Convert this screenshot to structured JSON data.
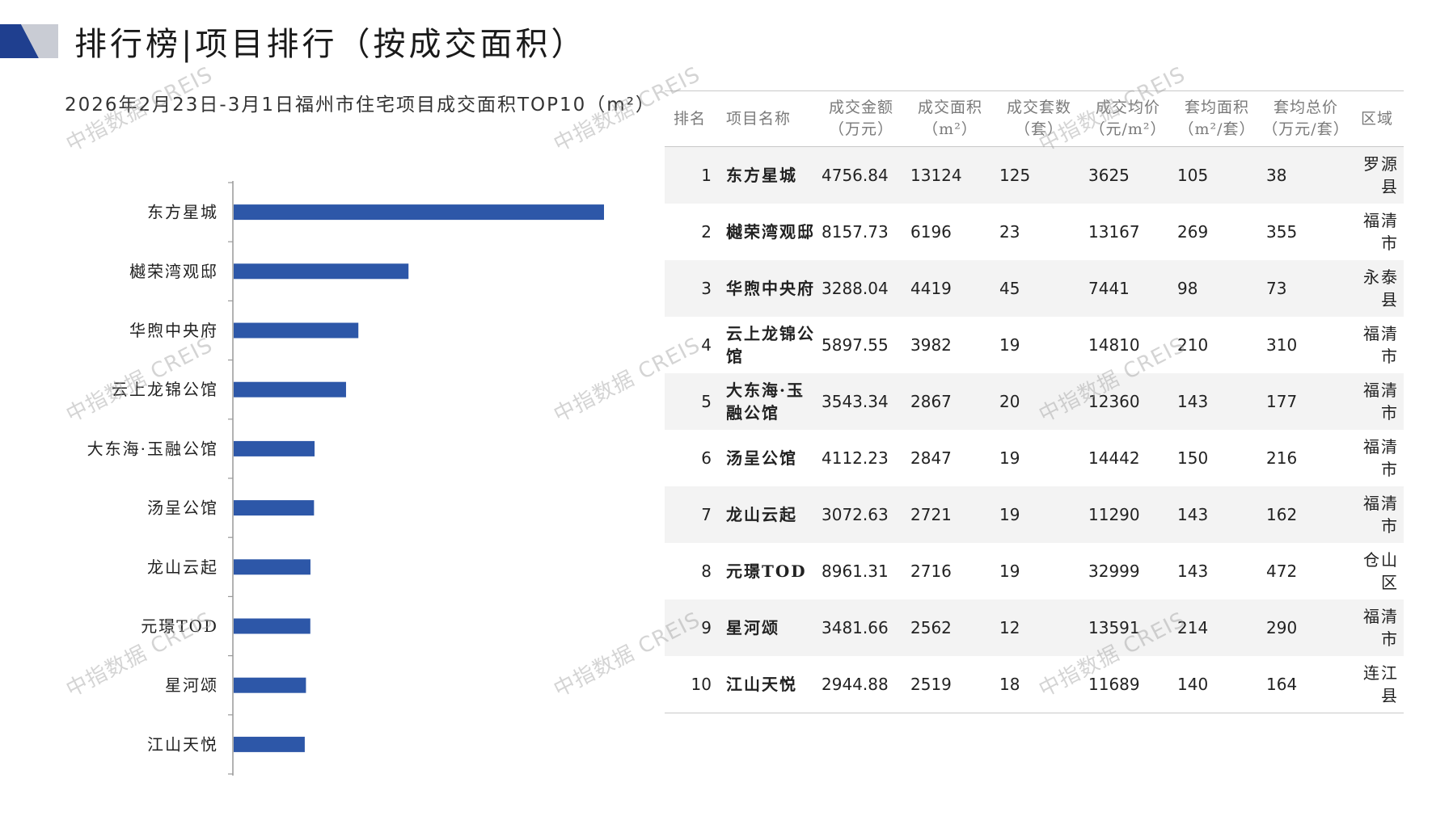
{
  "page_title": "排行榜|项目排行（按成交面积）",
  "watermark": "中指数据 CREIS",
  "colors": {
    "bar": "#2d57a8",
    "deco_dark": "#1f3f8f",
    "deco_light": "#c9ccd4"
  },
  "chart_data": {
    "type": "bar",
    "orientation": "horizontal",
    "title": "2026年2月23日-3月1日福州市住宅项目成交面积TOP10（m²）",
    "categories": [
      "东方星城",
      "樾荣湾观邸",
      "华煦中央府",
      "云上龙锦公馆",
      "大东海·玉融公馆",
      "汤呈公馆",
      "龙山云起",
      "元璟TOD",
      "星河颂",
      "江山天悦"
    ],
    "values": [
      13124,
      6196,
      4419,
      3982,
      2867,
      2847,
      2721,
      2716,
      2562,
      2519
    ],
    "xlim": [
      0,
      13124
    ],
    "grid": false,
    "legend": "none"
  },
  "table": {
    "headers": [
      "排名",
      "项目名称",
      "成交金额\n（万元）",
      "成交面积\n（m²）",
      "成交套数\n（套）",
      "成交均价\n（元/m²）",
      "套均面积\n（m²/套）",
      "套均总价\n（万元/套）",
      "区域"
    ],
    "rows": [
      [
        "1",
        "东方星城",
        "4756.84",
        "13124",
        "125",
        "3625",
        "105",
        "38",
        "罗源县"
      ],
      [
        "2",
        "樾荣湾观邸",
        "8157.73",
        "6196",
        "23",
        "13167",
        "269",
        "355",
        "福清市"
      ],
      [
        "3",
        "华煦中央府",
        "3288.04",
        "4419",
        "45",
        "7441",
        "98",
        "73",
        "永泰县"
      ],
      [
        "4",
        "云上龙锦公馆",
        "5897.55",
        "3982",
        "19",
        "14810",
        "210",
        "310",
        "福清市"
      ],
      [
        "5",
        "大东海·玉融公馆",
        "3543.34",
        "2867",
        "20",
        "12360",
        "143",
        "177",
        "福清市"
      ],
      [
        "6",
        "汤呈公馆",
        "4112.23",
        "2847",
        "19",
        "14442",
        "150",
        "216",
        "福清市"
      ],
      [
        "7",
        "龙山云起",
        "3072.63",
        "2721",
        "19",
        "11290",
        "143",
        "162",
        "福清市"
      ],
      [
        "8",
        "元璟TOD",
        "8961.31",
        "2716",
        "19",
        "32999",
        "143",
        "472",
        "仓山区"
      ],
      [
        "9",
        "星河颂",
        "3481.66",
        "2562",
        "12",
        "13591",
        "214",
        "290",
        "福清市"
      ],
      [
        "10",
        "江山天悦",
        "2944.88",
        "2519",
        "18",
        "11689",
        "140",
        "164",
        "连江县"
      ]
    ]
  }
}
